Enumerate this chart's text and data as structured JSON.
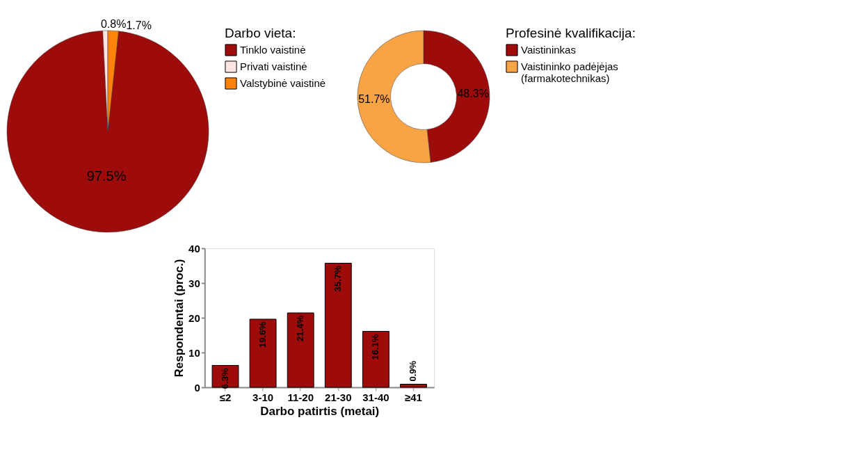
{
  "chart_data": [
    {
      "type": "pie",
      "legend_title": "Darbo vieta:",
      "legend": "right",
      "categories": [
        "Tinklo vaistinė",
        "Privati vaistinė",
        "Valstybinė vaistinė"
      ],
      "values": [
        97.5,
        0.8,
        1.7
      ],
      "colors": [
        "#9e0b0b",
        "#fde3e3",
        "#ff8307"
      ],
      "value_labels": [
        "97.5%",
        "0.8%",
        "1.7%"
      ]
    },
    {
      "type": "donut",
      "legend_title": "Profesinė kvalifikacija:",
      "legend": "right",
      "categories": [
        "Vaistininkas",
        "Vaistininko padėjėjas (farmakotechnikas)"
      ],
      "values": [
        48.3,
        51.7
      ],
      "colors": [
        "#9e0b0b",
        "#f9a444"
      ],
      "value_labels": [
        "48.3%",
        "51.7%"
      ]
    },
    {
      "type": "bar",
      "categories": [
        "≤2",
        "3-10",
        "11-20",
        "21-30",
        "31-40",
        "≥41"
      ],
      "values": [
        6.3,
        19.6,
        21.4,
        35.7,
        16.1,
        0.9
      ],
      "color": "#9e0b0b",
      "xlabel": "Darbo patirtis (metai)",
      "ylabel": "Respondentai (proc.)",
      "ylim": [
        0,
        40
      ],
      "yticks": [
        0,
        10,
        20,
        30,
        40
      ],
      "value_labels": [
        "6.3%",
        "19.6%",
        "21.4%",
        "35.7%",
        "16.1%",
        "0.9%"
      ]
    }
  ]
}
